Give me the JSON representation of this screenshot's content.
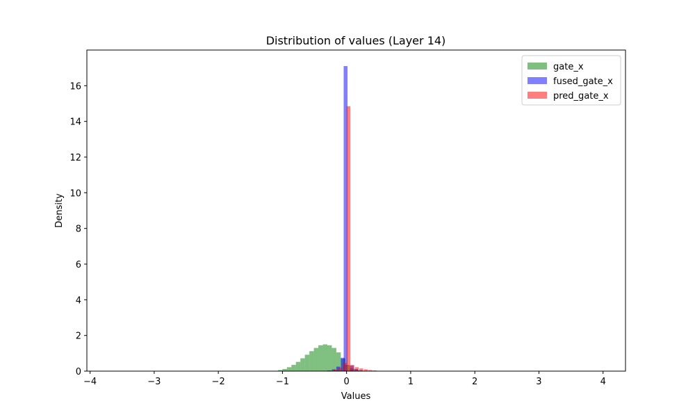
{
  "chart_data": {
    "type": "bar",
    "title": "Distribution of values (Layer 14)",
    "xlabel": "Values",
    "ylabel": "Density",
    "xlim": [
      -4.05,
      4.35
    ],
    "ylim": [
      0,
      18
    ],
    "xticks": [
      -4,
      -3,
      -2,
      -1,
      0,
      1,
      2,
      3,
      4
    ],
    "yticks": [
      0,
      2,
      4,
      6,
      8,
      10,
      12,
      14,
      16
    ],
    "grid": false,
    "legend_position": "top-right",
    "bin_width": 0.07,
    "series": [
      {
        "name": "gate_x",
        "color": "#008000",
        "opacity": 0.5,
        "bins": [
          [
            -1.14,
            0.02
          ],
          [
            -1.07,
            0.06
          ],
          [
            -1.0,
            0.12
          ],
          [
            -0.93,
            0.22
          ],
          [
            -0.86,
            0.35
          ],
          [
            -0.79,
            0.52
          ],
          [
            -0.72,
            0.72
          ],
          [
            -0.65,
            0.92
          ],
          [
            -0.58,
            1.12
          ],
          [
            -0.51,
            1.3
          ],
          [
            -0.44,
            1.45
          ],
          [
            -0.37,
            1.5
          ],
          [
            -0.3,
            1.45
          ],
          [
            -0.23,
            1.3
          ],
          [
            -0.16,
            1.05
          ],
          [
            -0.09,
            0.7
          ],
          [
            -0.02,
            0.35
          ],
          [
            0.05,
            0.15
          ],
          [
            0.12,
            0.06
          ],
          [
            0.19,
            0.02
          ]
        ]
      },
      {
        "name": "fused_gate_x",
        "color": "#0000ff",
        "opacity": 0.5,
        "bins": [
          [
            -0.3,
            0.04
          ],
          [
            -0.23,
            0.1
          ],
          [
            -0.16,
            0.25
          ],
          [
            -0.09,
            0.75
          ],
          [
            -0.045,
            17.1
          ],
          [
            0.05,
            0.3
          ],
          [
            0.12,
            0.12
          ],
          [
            0.19,
            0.05
          ],
          [
            0.26,
            0.02
          ]
        ]
      },
      {
        "name": "pred_gate_x",
        "color": "#ff0000",
        "opacity": 0.5,
        "bins": [
          [
            -0.2,
            0.08
          ],
          [
            -0.13,
            0.2
          ],
          [
            -0.06,
            0.45
          ],
          [
            0.0,
            14.85
          ],
          [
            0.06,
            0.35
          ],
          [
            0.13,
            0.22
          ],
          [
            0.2,
            0.15
          ],
          [
            0.27,
            0.1
          ],
          [
            0.34,
            0.06
          ],
          [
            0.41,
            0.04
          ],
          [
            0.48,
            0.02
          ]
        ]
      }
    ]
  }
}
